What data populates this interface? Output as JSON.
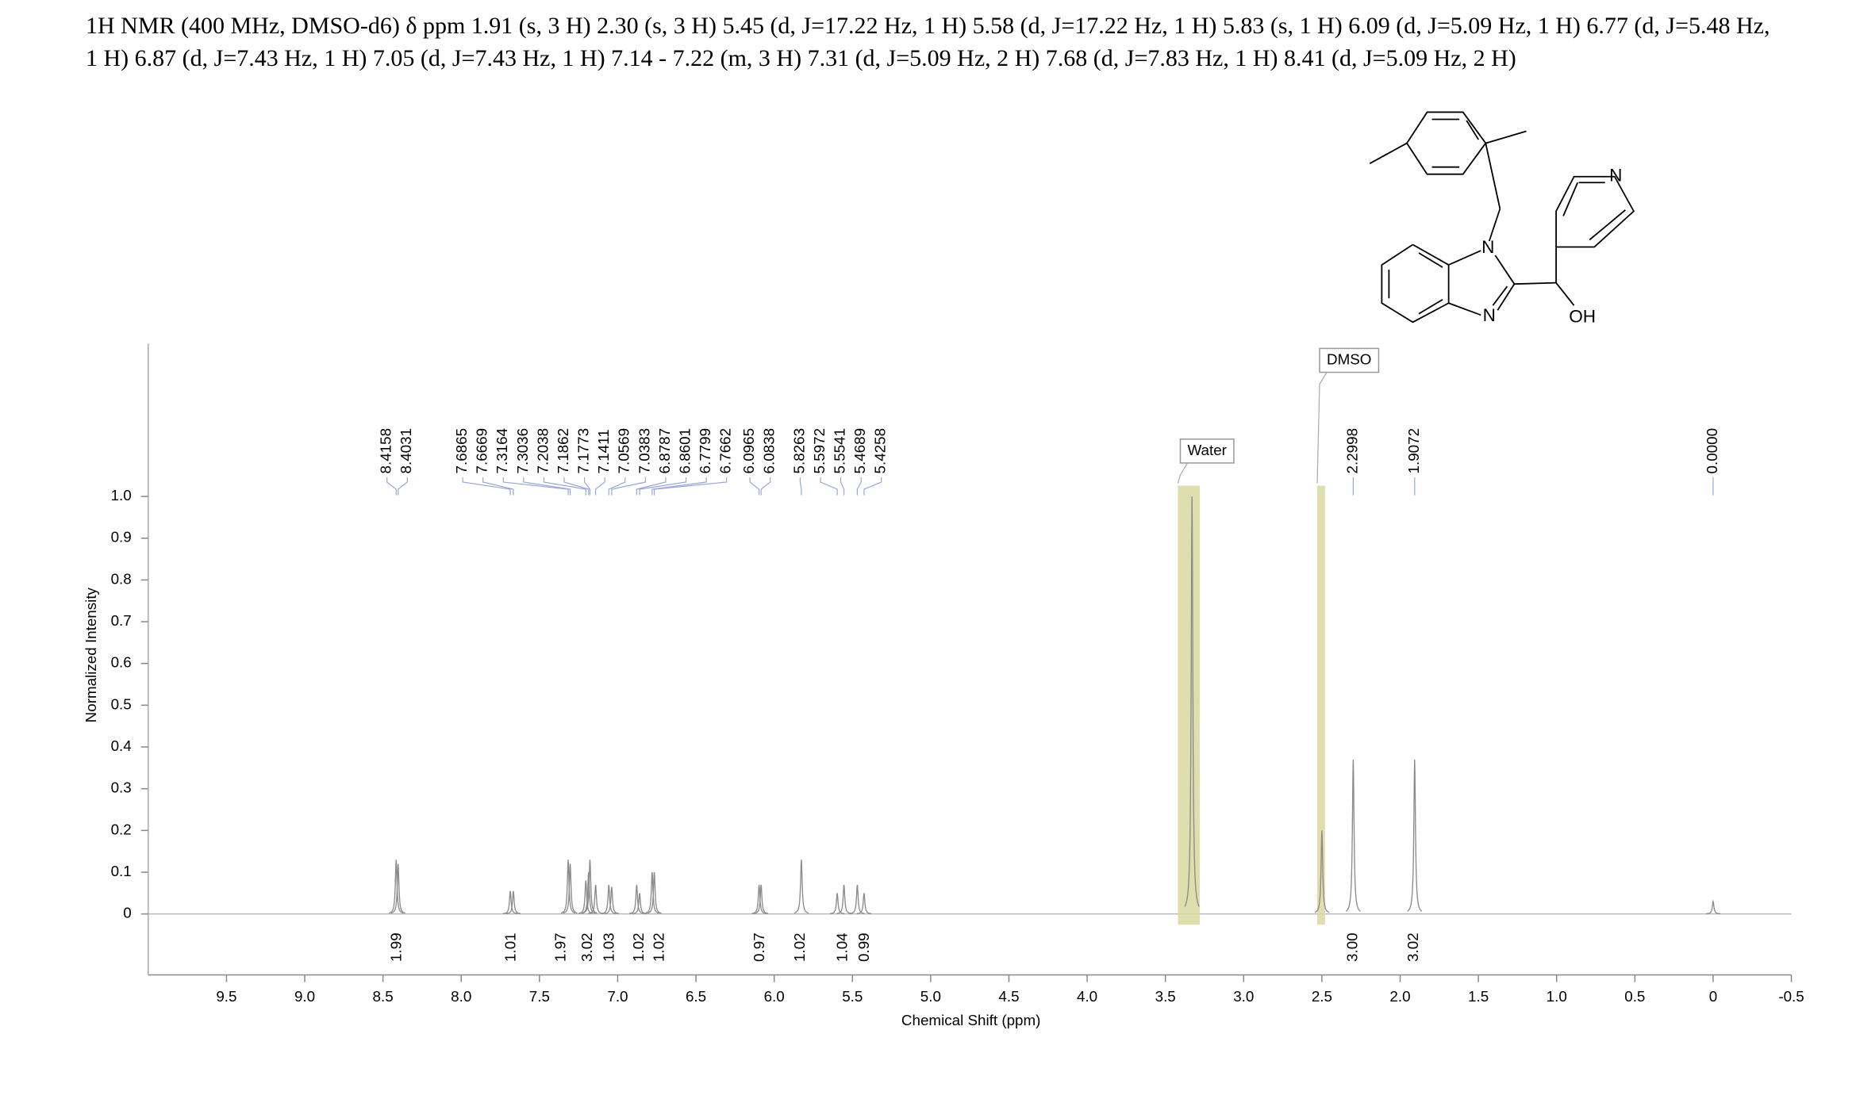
{
  "header": {
    "text": "1H NMR (400 MHz, DMSO-d6) δ ppm 1.91 (s, 3 H) 2.30 (s, 3 H) 5.45 (d, J=17.22 Hz, 1 H) 5.58 (d, J=17.22 Hz, 1 H) 5.83 (s, 1 H) 6.09 (d, J=5.09 Hz, 1 H) 6.77 (d, J=5.48 Hz, 1 H) 6.87 (d, J=7.43 Hz, 1 H) 7.05 (d, J=7.43 Hz, 1 H) 7.14 - 7.22 (m, 3 H) 7.31 (d, J=5.09 Hz, 2 H) 7.68 (d, J=7.83 Hz, 1 H) 8.41 (d, J=5.09 Hz, 2 H)"
  },
  "structure": {
    "atom_labels": [
      "N",
      "N",
      "N",
      "OH"
    ]
  },
  "chart_data": {
    "type": "spectrum",
    "x_label": "Chemical Shift (ppm)",
    "y_label": "Normalized Intensity",
    "xlim": [
      10,
      -0.5
    ],
    "ylim": [
      -0.146,
      1.366
    ],
    "xticks": [
      9.5,
      {
        "value": 9,
        "label": "9.0"
      },
      8.5,
      {
        "value": 8,
        "label": "8.0"
      },
      7.5,
      {
        "value": 7,
        "label": "7.0"
      },
      6.5,
      {
        "value": 6,
        "label": "6.0"
      },
      5.5,
      {
        "value": 5,
        "label": "5.0"
      },
      4.5,
      {
        "value": 4,
        "label": "4.0"
      },
      3.5,
      {
        "value": 3,
        "label": "3.0"
      },
      2.5,
      {
        "value": 2,
        "label": "2.0"
      },
      1.5,
      {
        "value": 1,
        "label": "1.0"
      },
      0.5,
      0,
      -0.5
    ],
    "yticks": [
      0,
      0.1,
      0.2,
      0.3,
      0.4,
      0.5,
      0.6,
      0.7,
      0.8,
      0.9,
      {
        "value": 1,
        "label": "1.0"
      }
    ],
    "series": [
      {
        "name": "spectrum",
        "color": "#8c8c8c",
        "x": [
          8.4158,
          8.4031,
          7.6865,
          7.6669,
          7.3164,
          7.3036,
          7.2038,
          7.1862,
          7.1773,
          7.1411,
          7.0569,
          7.0383,
          6.8787,
          6.8601,
          6.7799,
          6.7662,
          6.0965,
          6.0838,
          5.8263,
          5.5972,
          5.5541,
          5.4689,
          5.4258,
          3.33,
          2.5,
          2.2998,
          1.9072,
          0
        ],
        "values": [
          0.13,
          0.12,
          0.055,
          0.055,
          0.13,
          0.12,
          0.08,
          0.1,
          0.13,
          0.07,
          0.07,
          0.065,
          0.07,
          0.05,
          0.1,
          0.1,
          0.07,
          0.07,
          0.13,
          0.05,
          0.07,
          0.07,
          0.05,
          1.0,
          0.2,
          0.37,
          0.37,
          0.03
        ],
        "peak_labels": [
          "8.4158",
          "8.4031",
          "7.6865",
          "7.6669",
          "7.3164",
          "7.3036",
          "7.2038",
          "7.1862",
          "7.1773",
          "7.1411",
          "7.0569",
          "7.0383",
          "6.8787",
          "6.8601",
          "6.7799",
          "6.7662",
          "6.0965",
          "6.0838",
          "5.8263",
          "5.5972",
          "5.5541",
          "5.4689",
          "5.4258",
          null,
          null,
          "2.2998",
          "1.9072",
          "0.0000"
        ],
        "peak_label_color": "#1a1a8c"
      }
    ],
    "integrals": {
      "color": "#e8121e",
      "x": [
        8.41,
        7.68,
        7.36,
        7.19,
        7.05,
        6.86,
        6.73,
        6.09,
        5.83,
        5.56,
        5.42,
        2.3,
        1.91
      ],
      "values": [
        1.99,
        1.01,
        1.97,
        3.02,
        1.03,
        1.02,
        1.02,
        0.97,
        1.02,
        1.04,
        0.99,
        3,
        3.02
      ],
      "value_labels": [
        "1.99",
        "1.01",
        "1.97",
        "3.02",
        "1.03",
        "1.02",
        "1.02",
        "0.97",
        "1.02",
        "1.04",
        "0.99",
        "3.00",
        "3.02"
      ]
    },
    "regions": [
      {
        "label": "Water",
        "range": [
          3.42,
          3.28
        ],
        "color": "#d8d8a0"
      },
      {
        "label": "DMSO",
        "range": [
          2.53,
          2.48
        ],
        "color": "#d8d8a0"
      }
    ]
  }
}
